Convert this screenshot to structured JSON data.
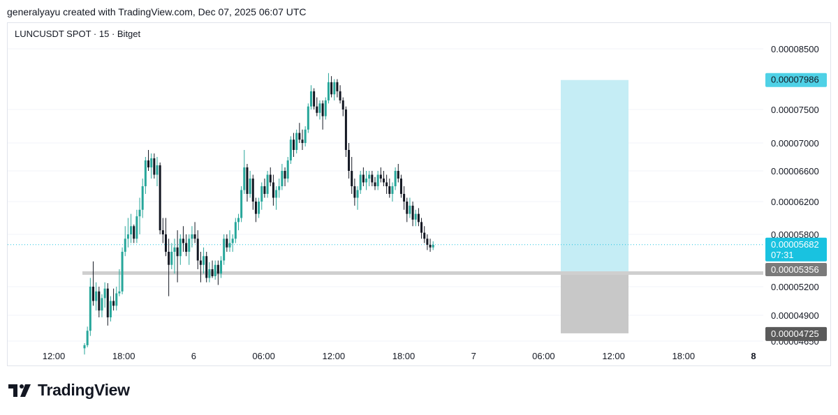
{
  "header": {
    "caption": "generalyayu created with TradingView.com, Dec 07, 2025 06:07 UTC"
  },
  "symbol_label": "LUNCUSDT SPOT · 15 · Bitget",
  "brand": {
    "name": "TradingView"
  },
  "colors": {
    "up": "#26a69a",
    "down": "#131722",
    "grid": "#f0f3fa",
    "profit_zone": "#c5edf5",
    "profit_tag": "#4fd1e6",
    "loss_zone": "#c8c8c8",
    "entry_line": "#cfcfcf",
    "entry_tag": "#7a7a7a",
    "stop_tag": "#5a5a5a",
    "price_tag": "#19c2e0"
  },
  "chart_data": {
    "type": "candlestick",
    "y_ticks": [
      "0.00008500",
      "0.00007500",
      "0.00007000",
      "0.00006600",
      "0.00006200",
      "0.00005800",
      "0.00005200",
      "0.00004900",
      "0.00004650"
    ],
    "x_ticks": [
      "12:00",
      "18:00",
      "6",
      "06:00",
      "12:00",
      "18:00",
      "7",
      "06:00",
      "12:00",
      "18:00",
      "8"
    ],
    "x_ticks_bold": [
      false,
      false,
      false,
      false,
      false,
      false,
      false,
      false,
      false,
      false,
      true
    ],
    "ylim": [
      4.65e-05,
      8.6e-05
    ],
    "position": {
      "type": "long",
      "take_profit": 7.986e-05,
      "entry": 5.356e-05,
      "stop_loss": 4.725e-05,
      "take_profit_label": "0.00007986",
      "entry_label": "0.00005356",
      "stop_label": "0.00004725"
    },
    "last_price": 5.682e-05,
    "last_price_label": "0.00005682",
    "countdown": "07:31",
    "candles": [
      [
        4.58e-05,
        4.63e-05,
        4.52e-05,
        4.61e-05
      ],
      [
        4.61e-05,
        4.79e-05,
        4.59e-05,
        4.75e-05
      ],
      [
        4.75e-05,
        5.3e-05,
        4.7e-05,
        5.2e-05
      ],
      [
        5.2e-05,
        5.49e-05,
        5e-05,
        5.05e-05
      ],
      [
        5.05e-05,
        5.25e-05,
        4.95e-05,
        5.15e-05
      ],
      [
        5.15e-05,
        5.2e-05,
        4.88e-05,
        4.95e-05
      ],
      [
        4.95e-05,
        5.12e-05,
        4.88e-05,
        5.08e-05
      ],
      [
        5.08e-05,
        5.25e-05,
        4.98e-05,
        5.18e-05
      ],
      [
        5.18e-05,
        5.24e-05,
        4.8e-05,
        4.88e-05
      ],
      [
        4.88e-05,
        5.1e-05,
        4.84e-05,
        5.05e-05
      ],
      [
        5.05e-05,
        5.18e-05,
        4.95e-05,
        5e-05
      ],
      [
        5e-05,
        5.2e-05,
        4.95e-05,
        5.13e-05
      ],
      [
        5.13e-05,
        5.4e-05,
        5.1e-05,
        5.15e-05
      ],
      [
        5.15e-05,
        5.65e-05,
        5.12e-05,
        5.6e-05
      ],
      [
        5.6e-05,
        5.9e-05,
        5.55e-05,
        5.75e-05
      ],
      [
        5.75e-05,
        6e-05,
        5.65e-05,
        5.8e-05
      ],
      [
        5.8e-05,
        6.05e-05,
        5.7e-05,
        5.9e-05
      ],
      [
        5.9e-05,
        5.92e-05,
        5.7e-05,
        5.75e-05
      ],
      [
        5.75e-05,
        6.1e-05,
        5.7e-05,
        6.02e-05
      ],
      [
        6.02e-05,
        6.25e-05,
        5.8e-05,
        6.1e-05
      ],
      [
        6.1e-05,
        6.5e-05,
        6e-05,
        6.4e-05
      ],
      [
        6.4e-05,
        6.8e-05,
        6.3e-05,
        6.75e-05
      ],
      [
        6.75e-05,
        6.9e-05,
        6.6e-05,
        6.65e-05
      ],
      [
        6.65e-05,
        6.85e-05,
        6.5e-05,
        6.78e-05
      ],
      [
        6.78e-05,
        6.85e-05,
        6.5e-05,
        6.55e-05
      ],
      [
        6.55e-05,
        6.8e-05,
        6.4e-05,
        6.68e-05
      ],
      [
        6.68e-05,
        6.72e-05,
        5.8e-05,
        5.85e-05
      ],
      [
        5.85e-05,
        6e-05,
        5.7e-05,
        5.8e-05
      ],
      [
        5.8e-05,
        6e-05,
        5.55e-05,
        5.6e-05
      ],
      [
        5.6e-05,
        5.75e-05,
        5.1e-05,
        5.45e-05
      ],
      [
        5.45e-05,
        5.7e-05,
        5.4e-05,
        5.6e-05
      ],
      [
        5.6e-05,
        5.75e-05,
        5.35e-05,
        5.65e-05
      ],
      [
        5.65e-05,
        5.85e-05,
        5.25e-05,
        5.55e-05
      ],
      [
        5.55e-05,
        5.8e-05,
        5.45e-05,
        5.75e-05
      ],
      [
        5.75e-05,
        5.9e-05,
        5.6e-05,
        5.7e-05
      ],
      [
        5.7e-05,
        5.8e-05,
        5.55e-05,
        5.6e-05
      ],
      [
        5.6e-05,
        5.8e-05,
        5.45e-05,
        5.75e-05
      ],
      [
        5.75e-05,
        5.9e-05,
        5.65e-05,
        5.8e-05
      ],
      [
        5.8e-05,
        5.95e-05,
        5.7e-05,
        5.75e-05
      ],
      [
        5.75e-05,
        5.85e-05,
        5.4e-05,
        5.5e-05
      ],
      [
        5.5e-05,
        5.6e-05,
        5.25e-05,
        5.45e-05
      ],
      [
        5.45e-05,
        5.65e-05,
        5.35e-05,
        5.55e-05
      ],
      [
        5.55e-05,
        5.6e-05,
        5.25e-05,
        5.3e-05
      ],
      [
        5.3e-05,
        5.48e-05,
        5.25e-05,
        5.4e-05
      ],
      [
        5.4e-05,
        5.5e-05,
        5.3e-05,
        5.32e-05
      ],
      [
        5.32e-05,
        5.5e-05,
        5.28e-05,
        5.45e-05
      ],
      [
        5.45e-05,
        5.5e-05,
        5.22e-05,
        5.35e-05
      ],
      [
        5.35e-05,
        5.55e-05,
        5.3e-05,
        5.5e-05
      ],
      [
        5.5e-05,
        5.8e-05,
        5.45e-05,
        5.75e-05
      ],
      [
        5.75e-05,
        5.8e-05,
        5.6e-05,
        5.65e-05
      ],
      [
        5.65e-05,
        5.85e-05,
        5.6e-05,
        5.7e-05
      ],
      [
        5.7e-05,
        5.8e-05,
        5.6e-05,
        5.75e-05
      ],
      [
        5.75e-05,
        6e-05,
        5.7e-05,
        5.95e-05
      ],
      [
        5.95e-05,
        6.05e-05,
        5.85e-05,
        6e-05
      ],
      [
        6e-05,
        6.4e-05,
        5.95e-05,
        6.35e-05
      ],
      [
        6.35e-05,
        6.9e-05,
        6.3e-05,
        6.65e-05
      ],
      [
        6.65e-05,
        6.7e-05,
        6.2e-05,
        6.3e-05
      ],
      [
        6.3e-05,
        6.6e-05,
        6.25e-05,
        6.5e-05
      ],
      [
        6.5e-05,
        6.55e-05,
        6.1e-05,
        6.2e-05
      ],
      [
        6.2e-05,
        6.25e-05,
        5.95e-05,
        6.05e-05
      ],
      [
        6.05e-05,
        6.25e-05,
        6e-05,
        6.2e-05
      ],
      [
        6.2e-05,
        6.45e-05,
        6.1e-05,
        6.4e-05
      ],
      [
        6.4e-05,
        6.5e-05,
        6.25e-05,
        6.3e-05
      ],
      [
        6.3e-05,
        6.6e-05,
        6.25e-05,
        6.55e-05
      ],
      [
        6.55e-05,
        6.65e-05,
        6.4e-05,
        6.45e-05
      ],
      [
        6.45e-05,
        6.55e-05,
        6.15e-05,
        6.25e-05
      ],
      [
        6.25e-05,
        6.4e-05,
        6.1e-05,
        6.35e-05
      ],
      [
        6.35e-05,
        6.5e-05,
        6.25e-05,
        6.4e-05
      ],
      [
        6.4e-05,
        6.7e-05,
        6.35e-05,
        6.6e-05
      ],
      [
        6.6e-05,
        6.65e-05,
        6.4e-05,
        6.5e-05
      ],
      [
        6.5e-05,
        6.8e-05,
        6.45e-05,
        6.75e-05
      ],
      [
        6.75e-05,
        7.1e-05,
        6.7e-05,
        7.05e-05
      ],
      [
        7.05e-05,
        7.15e-05,
        6.8e-05,
        6.9e-05
      ],
      [
        6.9e-05,
        7.2e-05,
        6.85e-05,
        7.15e-05
      ],
      [
        7.15e-05,
        7.3e-05,
        7e-05,
        7.05e-05
      ],
      [
        7.05e-05,
        7.2e-05,
        6.9e-05,
        7e-05
      ],
      [
        7e-05,
        7.25e-05,
        6.95e-05,
        7.2e-05
      ],
      [
        7.2e-05,
        7.6e-05,
        7.15e-05,
        7.55e-05
      ],
      [
        7.55e-05,
        7.9e-05,
        7.5e-05,
        7.8e-05
      ],
      [
        7.8e-05,
        7.85e-05,
        7.5e-05,
        7.55e-05
      ],
      [
        7.55e-05,
        7.7e-05,
        7.4e-05,
        7.45e-05
      ],
      [
        7.45e-05,
        7.65e-05,
        7.35e-05,
        7.6e-05
      ],
      [
        7.6e-05,
        7.65e-05,
        7.2e-05,
        7.4e-05
      ],
      [
        7.4e-05,
        7.7e-05,
        7.35e-05,
        7.65e-05
      ],
      [
        7.65e-05,
        8.1e-05,
        7.6e-05,
        7.95e-05
      ],
      [
        7.95e-05,
        8.05e-05,
        7.7e-05,
        7.75e-05
      ],
      [
        7.75e-05,
        8e-05,
        7.65e-05,
        7.95e-05
      ],
      [
        7.95e-05,
        8e-05,
        7.7e-05,
        7.8e-05
      ],
      [
        7.8e-05,
        7.9e-05,
        7.6e-05,
        7.65e-05
      ],
      [
        7.65e-05,
        7.7e-05,
        7.4e-05,
        7.5e-05
      ],
      [
        7.5e-05,
        7.55e-05,
        6.8e-05,
        6.9e-05
      ],
      [
        6.9e-05,
        7e-05,
        6.5e-05,
        6.6e-05
      ],
      [
        6.6e-05,
        6.8e-05,
        6.3e-05,
        6.4e-05
      ],
      [
        6.4e-05,
        6.5e-05,
        6.15e-05,
        6.25e-05
      ],
      [
        6.25e-05,
        6.4e-05,
        6.1e-05,
        6.35e-05
      ],
      [
        6.35e-05,
        6.6e-05,
        6.3e-05,
        6.55e-05
      ],
      [
        6.55e-05,
        6.65e-05,
        6.4e-05,
        6.45e-05
      ],
      [
        6.45e-05,
        6.6e-05,
        6.35e-05,
        6.5e-05
      ],
      [
        6.5e-05,
        6.6e-05,
        6.4e-05,
        6.55e-05
      ],
      [
        6.55e-05,
        6.6e-05,
        6.4e-05,
        6.45e-05
      ],
      [
        6.45e-05,
        6.52e-05,
        6.35e-05,
        6.4e-05
      ],
      [
        6.4e-05,
        6.6e-05,
        6.35e-05,
        6.55e-05
      ],
      [
        6.55e-05,
        6.65e-05,
        6.45e-05,
        6.5e-05
      ],
      [
        6.5e-05,
        6.6e-05,
        6.4e-05,
        6.45e-05
      ],
      [
        6.45e-05,
        6.55e-05,
        6.3e-05,
        6.4e-05
      ],
      [
        6.4e-05,
        6.5e-05,
        6.25e-05,
        6.3e-05
      ],
      [
        6.3e-05,
        6.45e-05,
        6.2e-05,
        6.4e-05
      ],
      [
        6.4e-05,
        6.65e-05,
        6.35e-05,
        6.6e-05
      ],
      [
        6.6e-05,
        6.7e-05,
        6.45e-05,
        6.5e-05
      ],
      [
        6.5e-05,
        6.55e-05,
        6.25e-05,
        6.3e-05
      ],
      [
        6.3e-05,
        6.4e-05,
        6.1e-05,
        6.2e-05
      ],
      [
        6.2e-05,
        6.25e-05,
        5.95e-05,
        6.05e-05
      ],
      [
        6.05e-05,
        6.25e-05,
        6e-05,
        6.15e-05
      ],
      [
        6.15e-05,
        6.2e-05,
        5.9e-05,
        5.98e-05
      ],
      [
        5.98e-05,
        6.1e-05,
        5.9e-05,
        6.05e-05
      ],
      [
        6.05e-05,
        6.12e-05,
        5.9e-05,
        5.95e-05
      ],
      [
        5.95e-05,
        6e-05,
        5.75e-05,
        5.82e-05
      ],
      [
        5.82e-05,
        5.9e-05,
        5.7e-05,
        5.75e-05
      ],
      [
        5.75e-05,
        5.8e-05,
        5.62e-05,
        5.68e-05
      ],
      [
        5.68e-05,
        5.75e-05,
        5.6e-05,
        5.65e-05
      ],
      [
        5.65e-05,
        5.72e-05,
        5.62e-05,
        5.68e-05
      ]
    ]
  }
}
